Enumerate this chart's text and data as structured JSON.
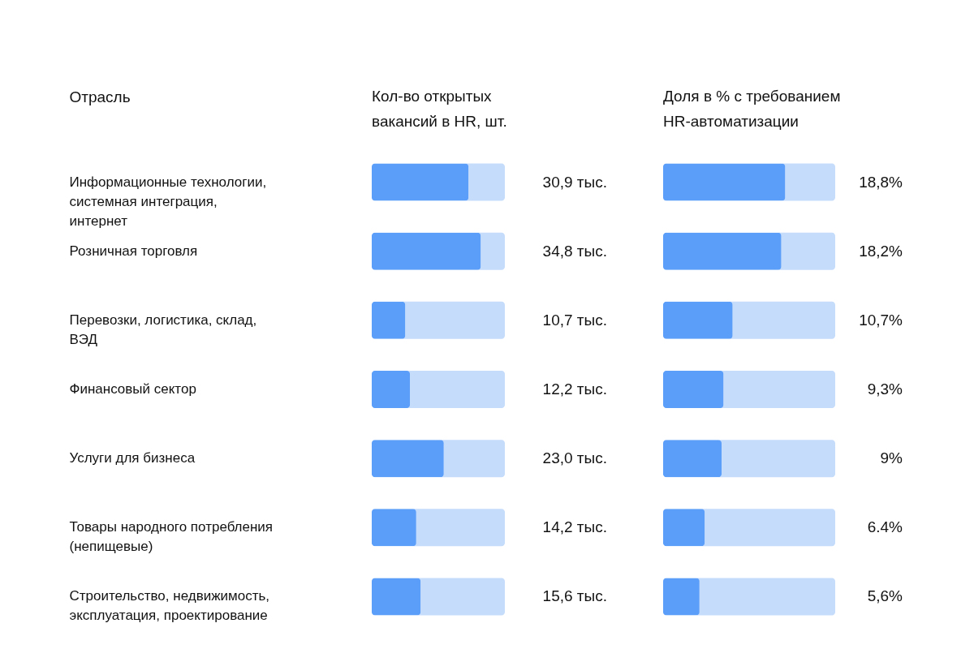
{
  "chart_data": [
    {
      "type": "bar",
      "orientation": "horizontal",
      "title": "Кол-во открытых вакансий в HR, шт.",
      "ylabel": "Отрасль",
      "categories": [
        "Информационные технологии, системная интеграция, интернет",
        "Розничная торговля",
        "Перевозки, логистика, склад, ВЭД",
        "Финансовый сектор",
        "Услуги для бизнеса",
        "Товары народного потребления (непищевые)",
        "Строительство, недвижимость, эксплуатация, проектирование"
      ],
      "values": [
        30.9,
        34.8,
        10.7,
        12.2,
        23.0,
        14.2,
        15.6
      ],
      "value_labels": [
        "30,9 тыс.",
        "34,8 тыс.",
        "10,7 тыс.",
        "12,2 тыс.",
        "23,0 тыс.",
        "14,2 тыс.",
        "15,6 тыс."
      ],
      "color": "#5b9ef9",
      "xlim": [
        0,
        42.5
      ],
      "tick_labels": "y",
      "grid": false,
      "bands": [
        {
          "axis": "x",
          "from": 0,
          "to": 42.5,
          "color": "#c5dcfb"
        },
        {
          "axis": "x",
          "from": 0,
          "to": 42.5,
          "color": "#c5dcfb"
        },
        {
          "axis": "x",
          "from": 0,
          "to": 42.5,
          "color": "#c5dcfb"
        },
        {
          "axis": "x",
          "from": 0,
          "to": 42.5,
          "color": "#c5dcfb"
        },
        {
          "axis": "x",
          "from": 0,
          "to": 42.5,
          "color": "#c5dcfb"
        },
        {
          "axis": "x",
          "from": 0,
          "to": 42.5,
          "color": "#c5dcfb"
        },
        {
          "axis": "x",
          "from": 0,
          "to": 42.5,
          "color": "#c5dcfb"
        }
      ]
    },
    {
      "type": "bar",
      "orientation": "horizontal",
      "title": "Доля в % с требованием HR-автоматизации",
      "categories": [
        null,
        null,
        null,
        null,
        null,
        null,
        null
      ],
      "values": [
        18.8,
        18.2,
        10.7,
        9.3,
        9,
        6.4,
        5.6
      ],
      "value_labels": [
        "18,8%",
        "18,2%",
        "10,7%",
        "9,3%",
        "9%",
        "6.4%",
        "5,6%"
      ],
      "color": "#5b9ef9",
      "xlim": [
        0,
        26.5
      ],
      "tick_labels": false,
      "grid": false,
      "bands": [
        {
          "axis": "x",
          "from": 0,
          "to": 26.5,
          "color": "#c5dcfb"
        },
        {
          "axis": "x",
          "from": 0,
          "to": 26.5,
          "color": "#c5dcfb"
        },
        {
          "axis": "x",
          "from": 0,
          "to": 26.5,
          "color": "#c5dcfb"
        },
        {
          "axis": "x",
          "from": 0,
          "to": 26.5,
          "color": "#c5dcfb"
        },
        {
          "axis": "x",
          "from": 0,
          "to": 26.5,
          "color": "#c5dcfb"
        },
        {
          "axis": "x",
          "from": 0,
          "to": 26.5,
          "color": "#c5dcfb"
        },
        {
          "axis": "x",
          "from": 0,
          "to": 26.5,
          "color": "#c5dcfb"
        }
      ]
    }
  ]
}
